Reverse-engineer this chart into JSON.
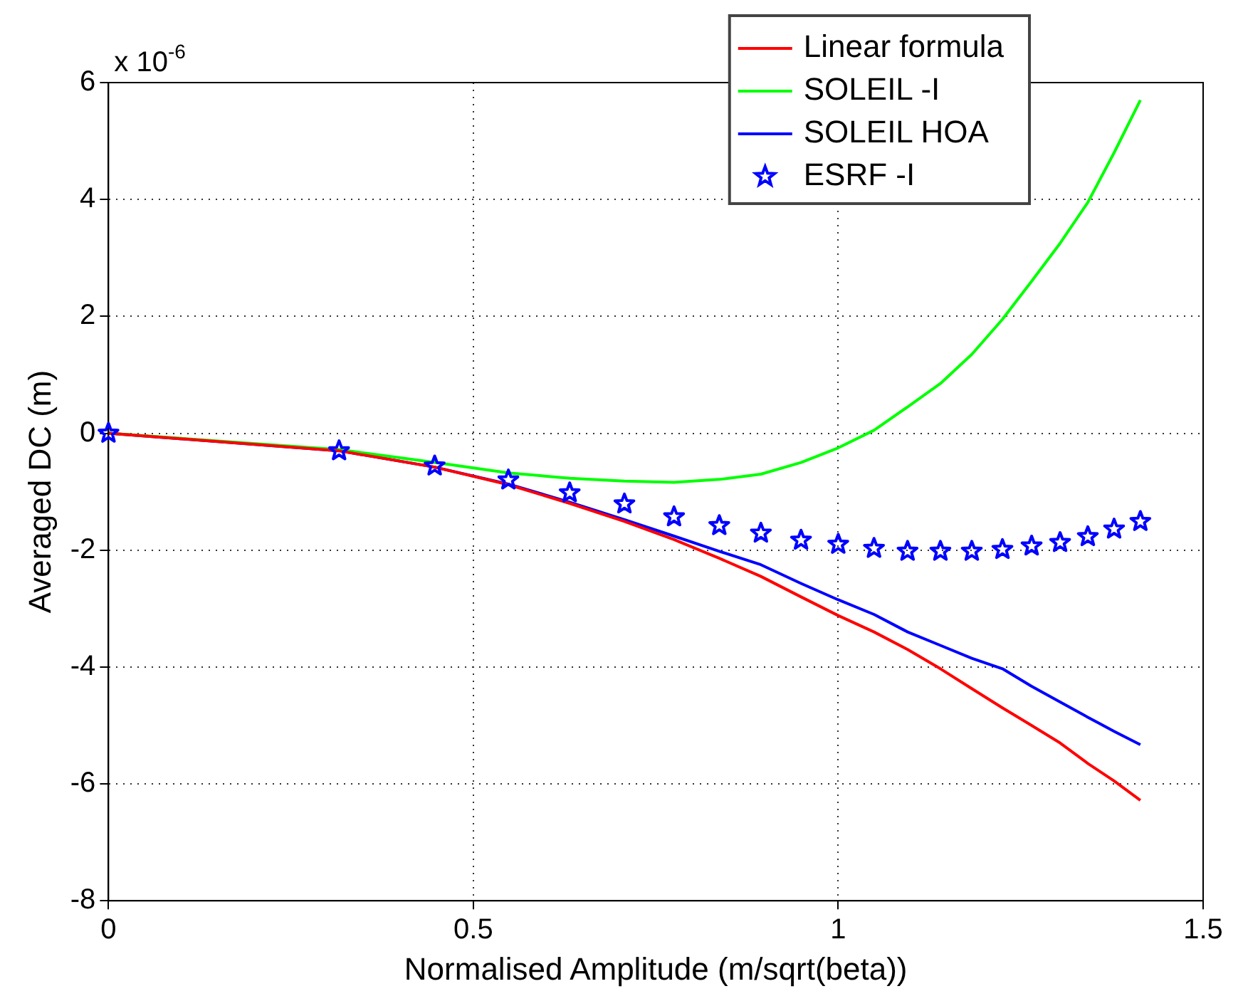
{
  "chart_data": {
    "type": "line",
    "xlabel": "Normalised Amplitude (m/sqrt(beta))",
    "ylabel": "Averaged DC (m)",
    "annotations": [
      "x 10$^{-6}$"
    ],
    "x": [
      0,
      0.316,
      0.447,
      0.548,
      0.632,
      0.707,
      0.775,
      0.837,
      0.894,
      0.949,
      1.0,
      1.049,
      1.095,
      1.14,
      1.183,
      1.225,
      1.265,
      1.304,
      1.342,
      1.378,
      1.414
    ],
    "series": [
      {
        "name": "Linear formula",
        "type": "line",
        "marker": "none",
        "color": "#ff0000",
        "values": [
          0,
          -0.3,
          -0.58,
          -0.88,
          -1.2,
          -1.51,
          -1.82,
          -2.14,
          -2.45,
          -2.8,
          -3.12,
          -3.4,
          -3.7,
          -4.03,
          -4.37,
          -4.7,
          -5.0,
          -5.3,
          -5.65,
          -5.95,
          -6.28
        ]
      },
      {
        "name": "SOLEIL -I",
        "type": "line",
        "marker": "none",
        "color": "#00ff00",
        "values": [
          0,
          -0.28,
          -0.5,
          -0.68,
          -0.77,
          -0.82,
          -0.84,
          -0.79,
          -0.7,
          -0.5,
          -0.25,
          0.05,
          0.45,
          0.85,
          1.35,
          1.95,
          2.6,
          3.25,
          3.95,
          4.8,
          5.7
        ]
      },
      {
        "name": "SOLEIL HOA",
        "type": "line",
        "marker": "none",
        "color": "#0000ff",
        "values": [
          0,
          -0.3,
          -0.58,
          -0.87,
          -1.18,
          -1.48,
          -1.76,
          -2.02,
          -2.25,
          -2.57,
          -2.85,
          -3.1,
          -3.4,
          -3.63,
          -3.85,
          -4.03,
          -4.33,
          -4.6,
          -4.86,
          -5.1,
          -5.33
        ]
      },
      {
        "name": "ESRF -I",
        "type": "scatter",
        "marker": "star",
        "color": "#0000ff",
        "values": [
          0,
          -0.3,
          -0.56,
          -0.8,
          -1.02,
          -1.21,
          -1.43,
          -1.58,
          -1.71,
          -1.83,
          -1.9,
          -1.97,
          -2.02,
          -2.02,
          -2.02,
          -1.99,
          -1.93,
          -1.87,
          -1.77,
          -1.64,
          -1.51
        ]
      }
    ],
    "xlim": [
      0,
      1.5
    ],
    "xticks": [
      0,
      0.5,
      1,
      1.5
    ],
    "ylim": [
      -8,
      6
    ],
    "yticks": [
      -8,
      -6,
      -4,
      -2,
      0,
      2,
      4,
      6
    ],
    "grid": true,
    "legend": "top right"
  }
}
